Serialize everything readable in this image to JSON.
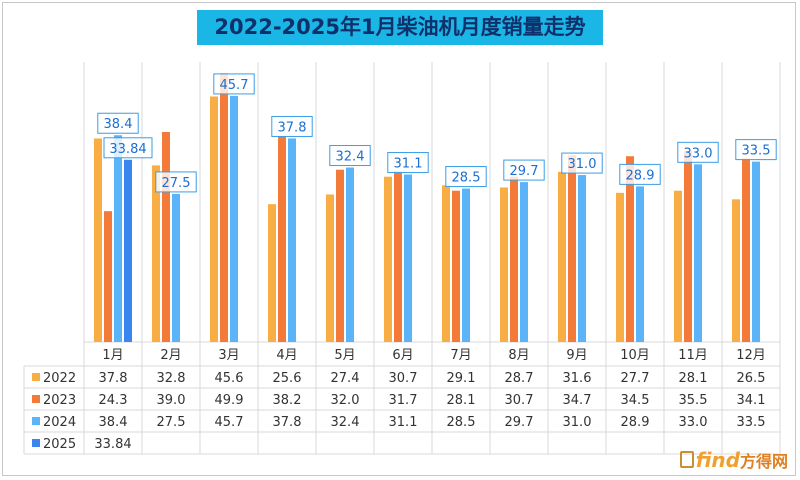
{
  "title": "2022-2025年1月柴油机月度销量走势",
  "watermark": {
    "brand": "find",
    "cn": "方得网"
  },
  "chart_data": {
    "type": "bar",
    "title": "2022-2025年1月柴油机月度销量走势",
    "categories": [
      "1月",
      "2月",
      "3月",
      "4月",
      "5月",
      "6月",
      "7月",
      "8月",
      "9月",
      "10月",
      "11月",
      "12月"
    ],
    "series": [
      {
        "name": "2022",
        "color": "#f9ae45",
        "values": [
          37.8,
          32.8,
          45.6,
          25.6,
          27.4,
          30.7,
          29.1,
          28.7,
          31.6,
          27.7,
          28.1,
          26.5
        ],
        "labels": [
          "37.8",
          "32.8",
          "45.6",
          "25.6",
          "27.4",
          "30.7",
          "29.1",
          "28.7",
          "31.6",
          "27.7",
          "28.1",
          "26.5"
        ]
      },
      {
        "name": "2023",
        "color": "#f47a3a",
        "values": [
          24.3,
          39.0,
          49.9,
          38.2,
          32.0,
          31.7,
          28.1,
          30.7,
          34.7,
          34.5,
          35.5,
          34.1
        ],
        "labels": [
          "24.3",
          "39.0",
          "49.9",
          "38.2",
          "32.0",
          "31.7",
          "28.1",
          "30.7",
          "34.7",
          "34.5",
          "35.5",
          "34.1"
        ]
      },
      {
        "name": "2024",
        "color": "#5ab4f7",
        "values": [
          38.4,
          27.5,
          45.7,
          37.8,
          32.4,
          31.1,
          28.5,
          29.7,
          31.0,
          28.9,
          33.0,
          33.5
        ],
        "labels": [
          "38.4",
          "27.5",
          "45.7",
          "37.8",
          "32.4",
          "31.1",
          "28.5",
          "29.7",
          "31.0",
          "28.9",
          "33.0",
          "33.5"
        ]
      },
      {
        "name": "2025",
        "color": "#3a85ee",
        "values": [
          33.84,
          null,
          null,
          null,
          null,
          null,
          null,
          null,
          null,
          null,
          null,
          null
        ],
        "labels": [
          "33.84",
          "",
          "",
          "",
          "",
          "",
          "",
          "",
          "",
          "",
          "",
          ""
        ]
      }
    ],
    "annotations": [
      {
        "series": "2024",
        "category": "1月",
        "text": "38.4"
      },
      {
        "series": "2025",
        "category": "1月",
        "text": "33.84"
      },
      {
        "series": "2024",
        "category": "2月",
        "text": "27.5"
      },
      {
        "series": "2024",
        "category": "3月",
        "text": "45.7"
      },
      {
        "series": "2024",
        "category": "4月",
        "text": "37.8"
      },
      {
        "series": "2024",
        "category": "5月",
        "text": "32.4"
      },
      {
        "series": "2024",
        "category": "6月",
        "text": "31.1"
      },
      {
        "series": "2024",
        "category": "7月",
        "text": "28.5"
      },
      {
        "series": "2024",
        "category": "8月",
        "text": "29.7"
      },
      {
        "series": "2024",
        "category": "9月",
        "text": "31.0"
      },
      {
        "series": "2024",
        "category": "10月",
        "text": "28.9"
      },
      {
        "series": "2024",
        "category": "11月",
        "text": "33.0"
      },
      {
        "series": "2024",
        "category": "12月",
        "text": "33.5"
      }
    ],
    "ylim": [
      0,
      52
    ],
    "grid": "vertical",
    "legend": "data-table"
  }
}
